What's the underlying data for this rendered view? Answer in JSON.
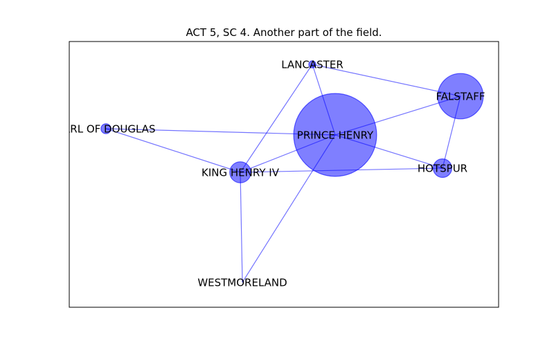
{
  "title": "ACT 5, SC 4. Another part of the field.",
  "colors": {
    "node_fill": "#0000ff",
    "node_fill_opacity": 0.5,
    "edge": "#0000ff",
    "edge_opacity": 0.55,
    "frame": "#000000"
  },
  "nodes": [
    {
      "id": "prince-henry",
      "label": "PRINCE HENRY",
      "weight": 14
    },
    {
      "id": "falstaff",
      "label": "FALSTAFF",
      "weight": 4.2
    },
    {
      "id": "lancaster",
      "label": "LANCASTER",
      "weight": 0.1
    },
    {
      "id": "earl-of-douglas",
      "label": "EARL OF DOUGLAS",
      "weight": 0.2
    },
    {
      "id": "king-henry-iv",
      "label": "KING HENRY IV",
      "weight": 0.9
    },
    {
      "id": "hotspur",
      "label": "HOTSPUR",
      "weight": 0.7
    },
    {
      "id": "westmoreland",
      "label": "WESTMORELAND",
      "weight": 0
    }
  ],
  "edges": [
    [
      "lancaster",
      "falstaff"
    ],
    [
      "lancaster",
      "prince-henry"
    ],
    [
      "lancaster",
      "king-henry-iv"
    ],
    [
      "falstaff",
      "prince-henry"
    ],
    [
      "falstaff",
      "hotspur"
    ],
    [
      "earl-of-douglas",
      "prince-henry"
    ],
    [
      "earl-of-douglas",
      "king-henry-iv"
    ],
    [
      "prince-henry",
      "king-henry-iv"
    ],
    [
      "prince-henry",
      "hotspur"
    ],
    [
      "prince-henry",
      "westmoreland"
    ],
    [
      "king-henry-iv",
      "hotspur"
    ],
    [
      "king-henry-iv",
      "westmoreland"
    ]
  ]
}
